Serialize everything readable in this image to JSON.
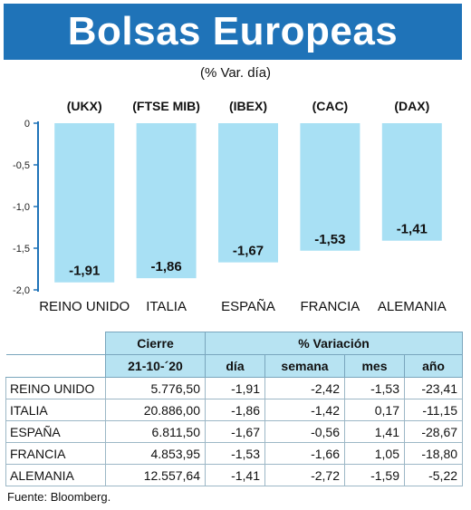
{
  "header": {
    "title": "Bolsas Europeas",
    "subtitle": "(% Var. día)"
  },
  "chart_data": {
    "type": "bar",
    "categories": [
      "REINO UNIDO",
      "ITALIA",
      "ESPAÑA",
      "FRANCIA",
      "ALEMANIA"
    ],
    "index_labels": [
      "(UKX)",
      "(FTSE MIB)",
      "(IBEX)",
      "(CAC)",
      "(DAX)"
    ],
    "values": [
      -1.91,
      -1.86,
      -1.67,
      -1.53,
      -1.41
    ],
    "value_labels": [
      "-1,91",
      "-1,86",
      "-1,67",
      "-1,53",
      "-1,41"
    ],
    "ylim": [
      -2.0,
      0
    ],
    "yticks": [
      0,
      -0.5,
      -1.0,
      -1.5,
      -2.0
    ],
    "ytick_labels": [
      "0",
      "-0,5",
      "-1,0",
      "-1,5",
      "-2,0"
    ],
    "bar_color": "#a8e0f4",
    "axis_color": "#1f73b8"
  },
  "table": {
    "group_headers": [
      "Cierre",
      "% Variación"
    ],
    "sub_headers": [
      "21-10-´20",
      "día",
      "semana",
      "mes",
      "año"
    ],
    "rows": [
      [
        "REINO UNIDO",
        "5.776,50",
        "-1,91",
        "-2,42",
        "-1,53",
        "-23,41"
      ],
      [
        "ITALIA",
        "20.886,00",
        "-1,86",
        "-1,42",
        "0,17",
        "-11,15"
      ],
      [
        "ESPAÑA",
        "6.811,50",
        "-1,67",
        "-0,56",
        "1,41",
        "-28,67"
      ],
      [
        "FRANCIA",
        "4.853,95",
        "-1,53",
        "-1,66",
        "1,05",
        "-18,80"
      ],
      [
        "ALEMANIA",
        "12.557,64",
        "-1,41",
        "-2,72",
        "-1,59",
        "-5,22"
      ]
    ]
  },
  "source": "Fuente: Bloomberg."
}
